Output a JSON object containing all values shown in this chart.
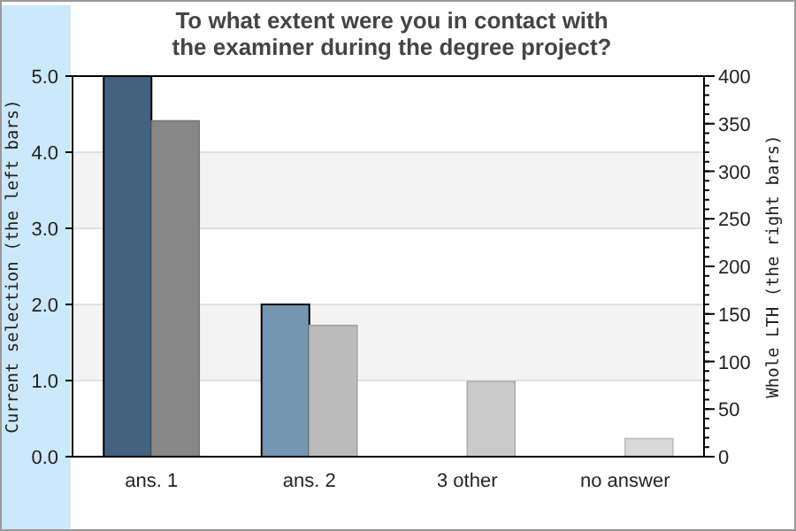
{
  "chart_data": {
    "type": "bar",
    "title": "To what extent were you in contact with\nthe examiner during the degree project?",
    "categories": [
      "ans. 1",
      "ans. 2",
      "3 other",
      "no answer"
    ],
    "ylabel": "Current selection (the left bars)",
    "y2label": "Whole LTH (the right bars)",
    "series": [
      {
        "colors": [
          "#42627e",
          "#7496b1",
          "#7496b1",
          "#7496b1"
        ],
        "values": [
          5,
          2,
          0,
          0
        ]
      },
      {
        "axis": "y2",
        "colors": [
          "#878787",
          "#bbbbbb",
          "#cacaca",
          "#d8d8d8"
        ],
        "values": [
          353,
          138,
          79,
          19
        ]
      }
    ],
    "ylim": [
      0,
      5
    ],
    "yticks": [
      {
        "value": 0,
        "label": "0.0"
      },
      {
        "value": 1,
        "label": "1.0"
      },
      {
        "value": 2,
        "label": "2.0"
      },
      {
        "value": 3,
        "label": "3.0"
      },
      {
        "value": 4,
        "label": "4.0"
      },
      {
        "value": 5,
        "label": "5.0"
      }
    ],
    "y2lim": [
      0,
      400
    ],
    "y2ticks": [
      0,
      50,
      100,
      150,
      200,
      250,
      300,
      350,
      400
    ],
    "grid": "y"
  }
}
